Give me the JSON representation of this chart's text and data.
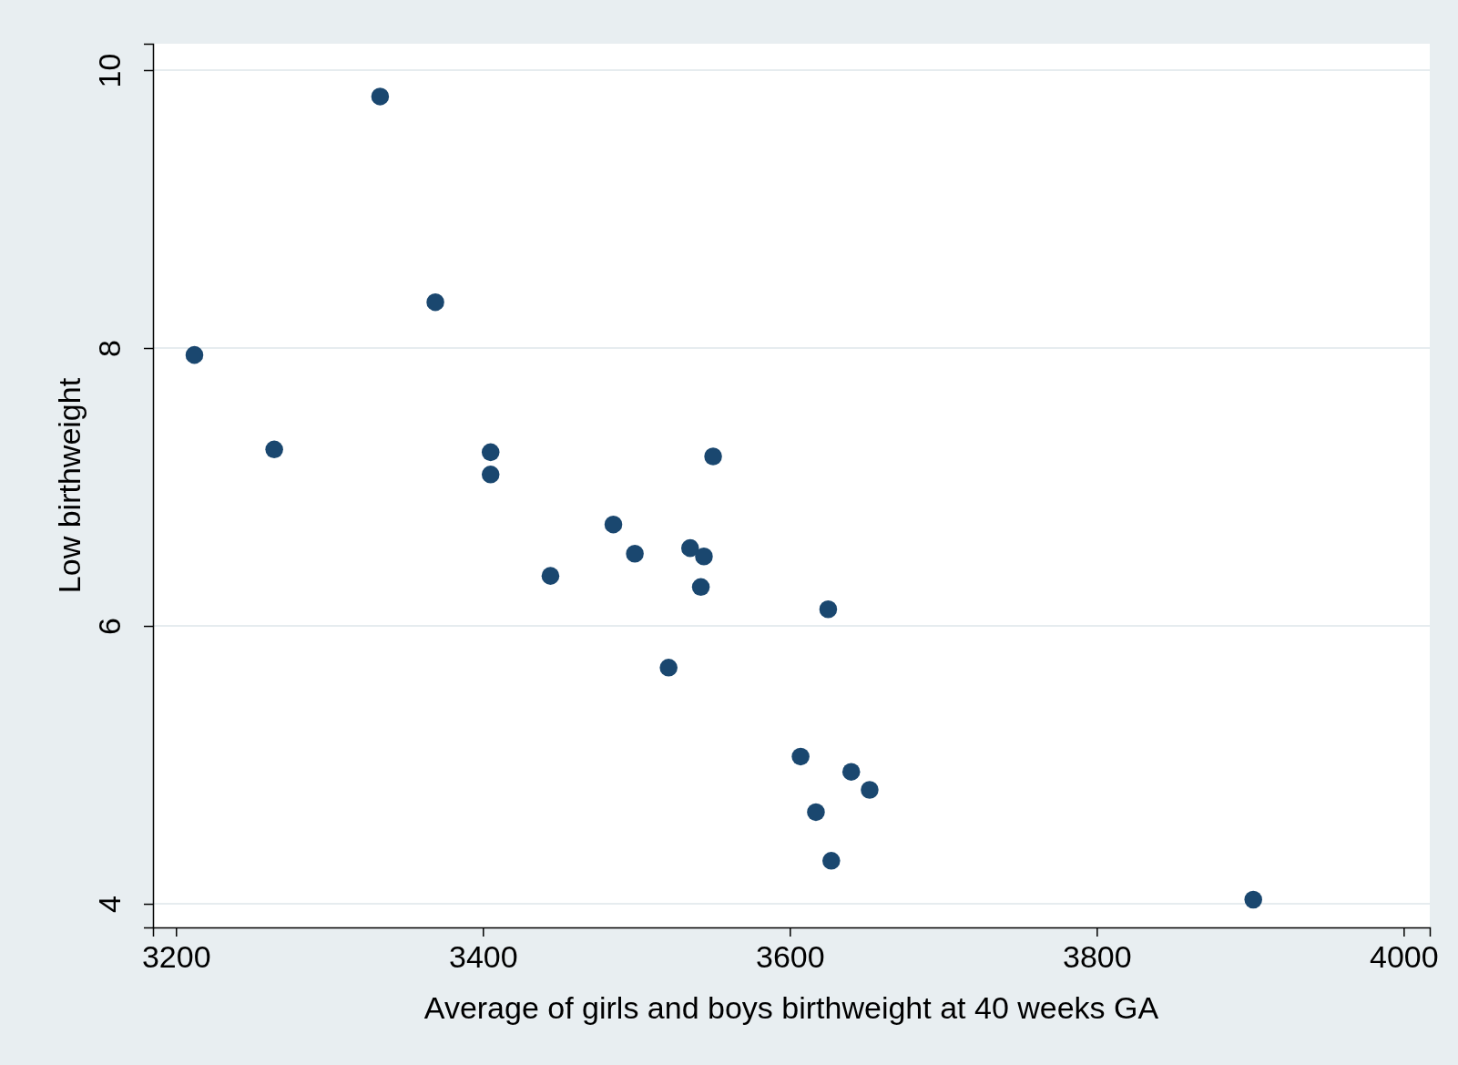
{
  "chart_data": {
    "type": "scatter",
    "xlabel": "Average of girls and boys birthweight at 40 weeks GA",
    "ylabel": "Low birthweight",
    "x": [
      3333,
      3369,
      3212,
      3264,
      3405,
      3405,
      3550,
      3485,
      3499,
      3444,
      3535,
      3544,
      3542,
      3625,
      3521,
      3607,
      3640,
      3652,
      3617,
      3627,
      3902
    ],
    "series": [
      {
        "color": "#1a476f",
        "values": [
          9.81,
          8.33,
          7.95,
          7.27,
          7.25,
          7.09,
          7.22,
          6.73,
          6.52,
          6.36,
          6.56,
          6.5,
          6.28,
          6.12,
          5.7,
          5.06,
          4.95,
          4.82,
          4.66,
          4.31,
          4.03
        ]
      }
    ],
    "xlim": [
      3185,
      4017
    ],
    "ylim": [
      3.83,
      10.19
    ],
    "xticks": [
      3200,
      3400,
      3600,
      3800,
      4000
    ],
    "yticks": [
      4,
      6,
      8,
      10
    ],
    "grid": "y",
    "marker": "circle"
  }
}
